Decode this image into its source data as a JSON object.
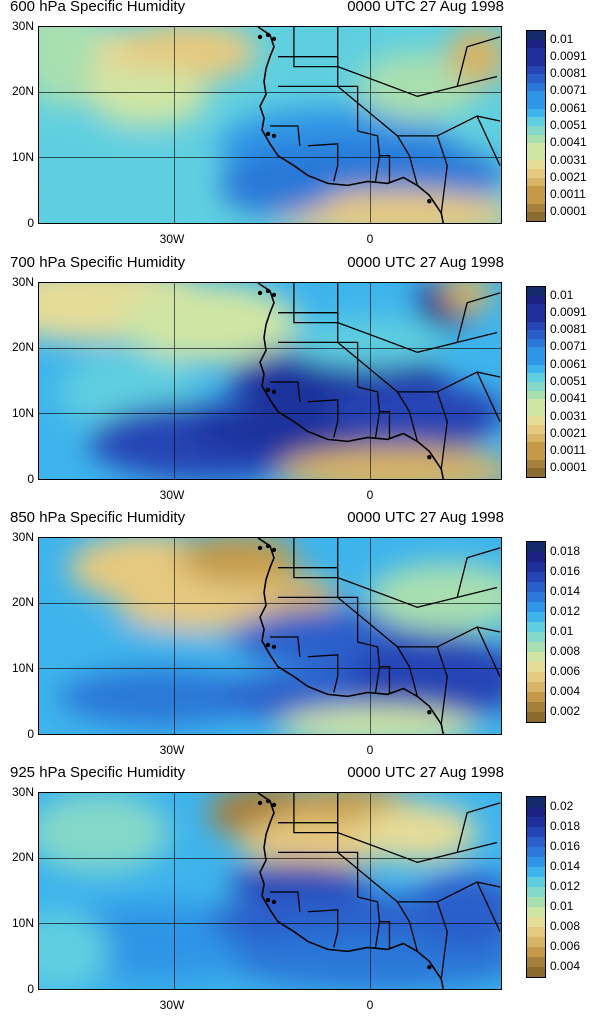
{
  "figure": {
    "panels": [
      {
        "title": "600 hPa Specific Humidity",
        "time": "0000 UTC 27 Aug 1998",
        "colorbar_labels": [
          "0.01",
          "0.0091",
          "0.0081",
          "0.0071",
          "0.0061",
          "0.0051",
          "0.0041",
          "0.0031",
          "0.0021",
          "0.0011",
          "0.0001"
        ],
        "colorbar_levels": 22
      },
      {
        "title": "700 hPa Specific Humidity",
        "time": "0000 UTC 27 Aug 1998",
        "colorbar_labels": [
          "0.01",
          "0.0091",
          "0.0081",
          "0.0071",
          "0.0061",
          "0.0051",
          "0.0041",
          "0.0031",
          "0.0021",
          "0.0011",
          "0.0001"
        ],
        "colorbar_levels": 22
      },
      {
        "title": "850 hPa Specific Humidity",
        "time": "0000 UTC 27 Aug 1998",
        "colorbar_labels": [
          "0.018",
          "0.016",
          "0.014",
          "0.012",
          "0.01",
          "0.008",
          "0.006",
          "0.004",
          "0.002"
        ],
        "colorbar_levels": 18
      },
      {
        "title": "925 hPa Specific Humidity",
        "time": "0000 UTC 27 Aug 1998",
        "colorbar_labels": [
          "0.02",
          "0.018",
          "0.016",
          "0.014",
          "0.012",
          "0.01",
          "0.008",
          "0.006",
          "0.004"
        ],
        "colorbar_levels": 18
      }
    ],
    "y_tick_labels": [
      "30N",
      "20N",
      "10N",
      "0"
    ],
    "x_tick_labels": [
      "30W",
      "0"
    ],
    "palette": [
      "#8b6a30",
      "#a77f3c",
      "#c49a4a",
      "#d7b465",
      "#e6c980",
      "#e5dc98",
      "#cfe5a4",
      "#a8dfb0",
      "#84d8c9",
      "#5fcfe0",
      "#3eb4ec",
      "#2f95e6",
      "#2b78d8",
      "#2a5ecb",
      "#2545b5",
      "#1f309c",
      "#1a2284",
      "#132b6a"
    ]
  }
}
